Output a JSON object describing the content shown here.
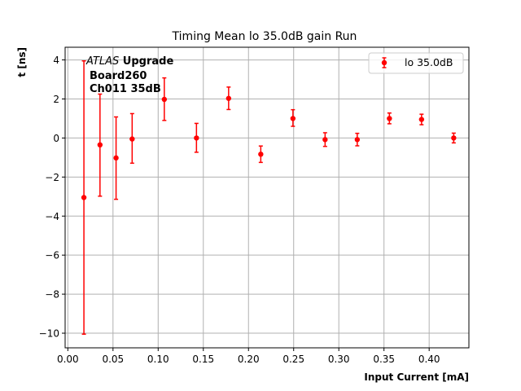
{
  "chart_data": {
    "type": "scatter",
    "title": "Timing Mean lo 35.0dB gain Run",
    "xlabel": "Input Current [mA]",
    "ylabel": "t [ns]",
    "xlim": [
      -0.003,
      0.444
    ],
    "ylim": [
      -10.75,
      4.65
    ],
    "x_ticks": [
      0.0,
      0.05,
      0.1,
      0.15,
      0.2,
      0.25,
      0.3,
      0.35,
      0.4
    ],
    "x_tick_labels": [
      "0.00",
      "0.05",
      "0.10",
      "0.15",
      "0.20",
      "0.25",
      "0.30",
      "0.35",
      "0.40"
    ],
    "y_ticks": [
      -10,
      -8,
      -6,
      -4,
      -2,
      0,
      2,
      4
    ],
    "y_tick_labels": [
      "−10",
      "−8",
      "−6",
      "−4",
      "−2",
      "0",
      "2",
      "4"
    ],
    "grid": true,
    "legend_position": "top-right",
    "annotation": {
      "atlas_italic": "ATLAS",
      "atlas_bold": " Upgrade",
      "line2": "Board260",
      "line3": "Ch011 35dB"
    },
    "series": [
      {
        "name": "lo 35.0dB",
        "color": "#ff0000",
        "x": [
          0.0178,
          0.0356,
          0.0534,
          0.0712,
          0.1068,
          0.1424,
          0.178,
          0.2136,
          0.2492,
          0.2848,
          0.3204,
          0.356,
          0.3916,
          0.4272
        ],
        "y": [
          -3.05,
          -0.35,
          -1.02,
          -0.05,
          1.98,
          0.0,
          2.03,
          -0.83,
          1.0,
          -0.08,
          -0.08,
          1.0,
          0.95,
          0.0
        ],
        "yerr_lo": [
          7.0,
          2.63,
          2.12,
          1.24,
          1.08,
          0.73,
          0.57,
          0.42,
          0.4,
          0.35,
          0.32,
          0.27,
          0.27,
          0.25
        ],
        "yerr_hi": [
          7.0,
          2.6,
          2.1,
          1.3,
          1.1,
          0.75,
          0.58,
          0.42,
          0.45,
          0.35,
          0.32,
          0.28,
          0.27,
          0.25
        ]
      }
    ]
  }
}
